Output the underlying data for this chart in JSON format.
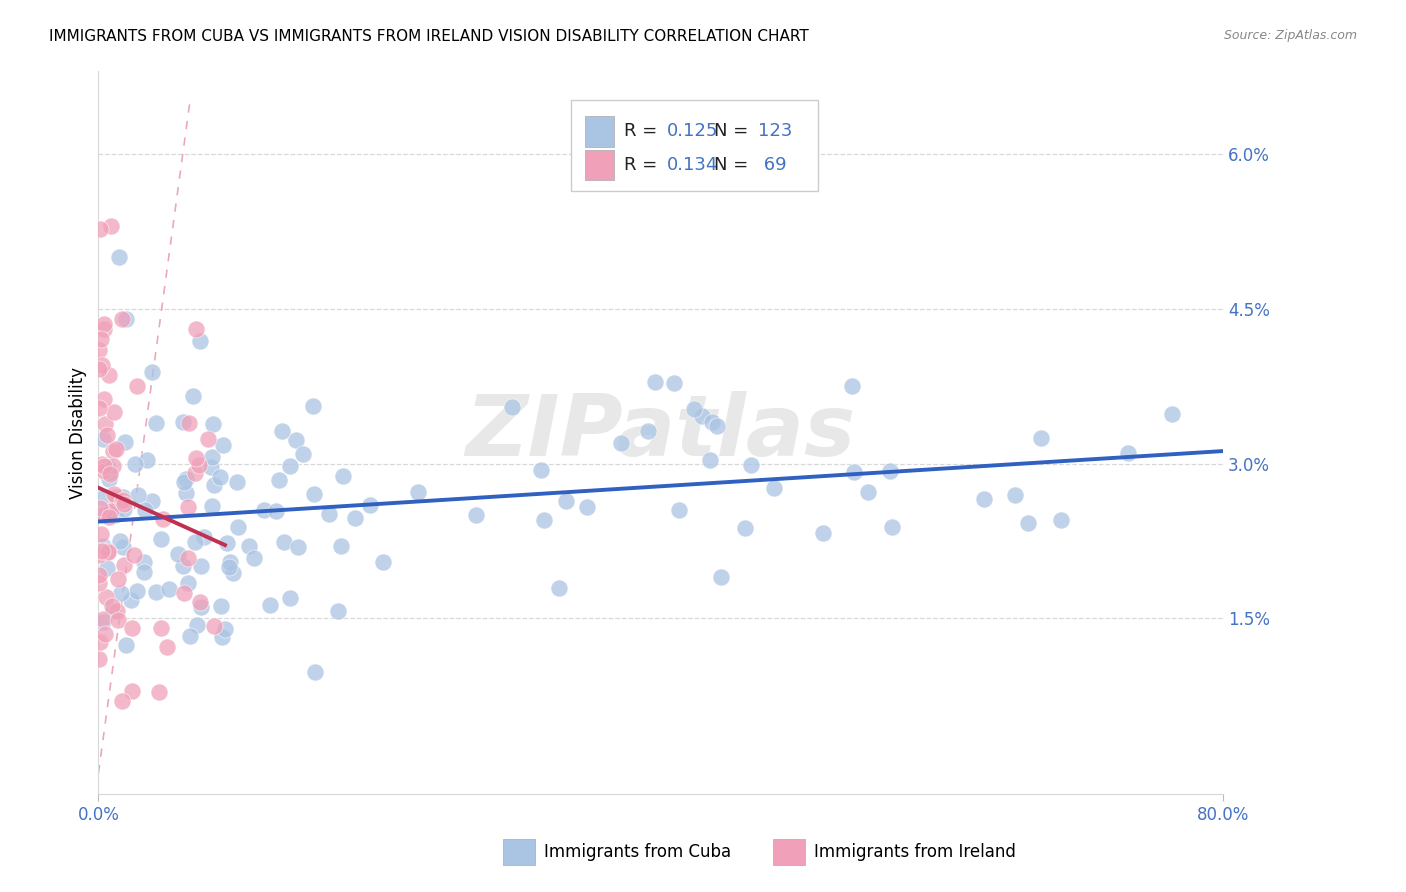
{
  "title": "IMMIGRANTS FROM CUBA VS IMMIGRANTS FROM IRELAND VISION DISABILITY CORRELATION CHART",
  "source": "Source: ZipAtlas.com",
  "ylabel": "Vision Disability",
  "xlim": [
    0.0,
    0.8
  ],
  "ylim": [
    -0.002,
    0.068
  ],
  "yticks": [
    0.015,
    0.03,
    0.045,
    0.06
  ],
  "ytick_labels": [
    "1.5%",
    "3.0%",
    "4.5%",
    "6.0%"
  ],
  "xticks": [
    0.0,
    0.8
  ],
  "xtick_labels": [
    "0.0%",
    "80.0%"
  ],
  "cuba_color": "#aac4e4",
  "ireland_color": "#f0a0b8",
  "cuba_line_color": "#3060c0",
  "ireland_line_color": "#c03050",
  "axis_color": "#4472c4",
  "grid_color": "#d8d8d8",
  "watermark": "ZIPatlas",
  "cuba_R": 0.125,
  "cuba_N": 123,
  "ireland_R": 0.134,
  "ireland_N": 69,
  "title_fontsize": 11,
  "tick_fontsize": 12,
  "legend_fontsize": 13
}
